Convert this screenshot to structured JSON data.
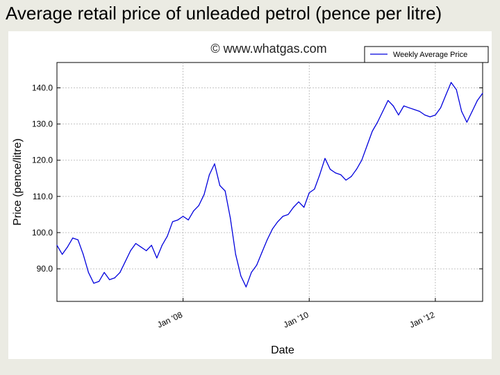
{
  "slide": {
    "title": "Average retail price of unleaded petrol (pence per litre)"
  },
  "chart_data": {
    "type": "line",
    "title": "© www.whatgas.com",
    "xlabel": "Date",
    "ylabel": "Price (pence/litre)",
    "xlim": [
      "2006-01",
      "2012-10"
    ],
    "ylim": [
      81,
      147
    ],
    "grid": true,
    "legend_position": "top-right",
    "line_color": "#0000dd",
    "x_ticks": [
      {
        "label": "Jan '08",
        "date": "2008-01"
      },
      {
        "label": "Jan '10",
        "date": "2010-01"
      },
      {
        "label": "Jan '12",
        "date": "2012-01"
      }
    ],
    "y_ticks": [
      {
        "label": "90.0",
        "value": 90
      },
      {
        "label": "100.0",
        "value": 100
      },
      {
        "label": "110.0",
        "value": 110
      },
      {
        "label": "120.0",
        "value": 120
      },
      {
        "label": "130.0",
        "value": 130
      },
      {
        "label": "140.0",
        "value": 140
      }
    ],
    "series": [
      {
        "name": "Weekly Average Price",
        "x": [
          "2006-01",
          "2006-02",
          "2006-03",
          "2006-04",
          "2006-05",
          "2006-06",
          "2006-07",
          "2006-08",
          "2006-09",
          "2006-10",
          "2006-11",
          "2006-12",
          "2007-01",
          "2007-02",
          "2007-03",
          "2007-04",
          "2007-05",
          "2007-06",
          "2007-07",
          "2007-08",
          "2007-09",
          "2007-10",
          "2007-11",
          "2007-12",
          "2008-01",
          "2008-02",
          "2008-03",
          "2008-04",
          "2008-05",
          "2008-06",
          "2008-07",
          "2008-08",
          "2008-09",
          "2008-10",
          "2008-11",
          "2008-12",
          "2009-01",
          "2009-02",
          "2009-03",
          "2009-04",
          "2009-05",
          "2009-06",
          "2009-07",
          "2009-08",
          "2009-09",
          "2009-10",
          "2009-11",
          "2009-12",
          "2010-01",
          "2010-02",
          "2010-03",
          "2010-04",
          "2010-05",
          "2010-06",
          "2010-07",
          "2010-08",
          "2010-09",
          "2010-10",
          "2010-11",
          "2010-12",
          "2011-01",
          "2011-02",
          "2011-03",
          "2011-04",
          "2011-05",
          "2011-06",
          "2011-07",
          "2011-08",
          "2011-09",
          "2011-10",
          "2011-11",
          "2011-12",
          "2012-01",
          "2012-02",
          "2012-03",
          "2012-04",
          "2012-05",
          "2012-06",
          "2012-07",
          "2012-08",
          "2012-09",
          "2012-10"
        ],
        "values": [
          96.5,
          94.0,
          96.0,
          98.5,
          98.0,
          94.0,
          89.0,
          86.0,
          86.5,
          89.0,
          87.0,
          87.5,
          89.0,
          92.0,
          95.0,
          97.0,
          96.0,
          95.0,
          96.5,
          93.0,
          96.5,
          99.0,
          103.0,
          103.5,
          104.5,
          103.5,
          106.0,
          107.5,
          110.5,
          116.0,
          119.0,
          113.0,
          111.5,
          104.0,
          94.0,
          88.0,
          85.0,
          89.0,
          91.0,
          94.5,
          98.0,
          101.0,
          103.0,
          104.5,
          105.0,
          107.0,
          108.5,
          107.0,
          111.0,
          112.0,
          116.0,
          120.5,
          117.5,
          116.5,
          116.0,
          114.5,
          115.5,
          117.5,
          120.0,
          124.0,
          128.0,
          130.5,
          133.5,
          136.5,
          135.0,
          132.5,
          135.0,
          134.5,
          134.0,
          133.5,
          132.5,
          132.0,
          132.5,
          134.5,
          138.0,
          141.5,
          139.5,
          133.5,
          130.5,
          133.5,
          136.5,
          138.5
        ]
      }
    ]
  }
}
